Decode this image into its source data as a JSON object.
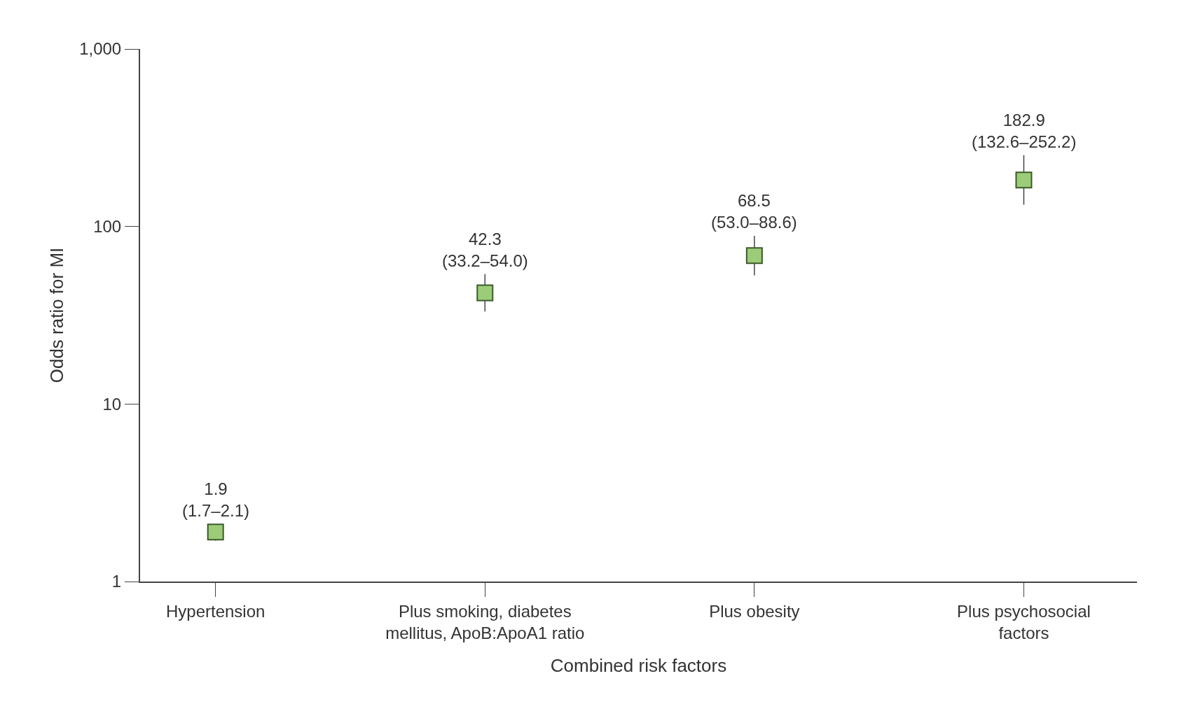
{
  "chart_data": {
    "type": "scatter",
    "xlabel": "Combined risk factors",
    "ylabel": "Odds ratio for MI",
    "categories": [
      "Hypertension",
      "Plus smoking, diabetes\nmellitus, ApoB:ApoA1 ratio",
      "Plus obesity",
      "Plus psychosocial\nfactors"
    ],
    "values": [
      1.9,
      42.3,
      68.5,
      182.9
    ],
    "errors": [
      [
        1.7,
        2.1
      ],
      [
        33.2,
        54.0
      ],
      [
        53.0,
        88.6
      ],
      [
        132.6,
        252.2
      ]
    ],
    "value_labels": [
      "1.9\n(1.7–2.1)",
      "42.3\n(33.2–54.0)",
      "68.5\n(53.0–88.6)",
      "182.9\n(132.6–252.2)"
    ],
    "color": "#9ccc78",
    "marker": "square",
    "log": true,
    "ylim": [
      1,
      1000
    ],
    "yticks": [
      1,
      10,
      100,
      {
        "value": 1000,
        "label": "1,000"
      }
    ]
  }
}
